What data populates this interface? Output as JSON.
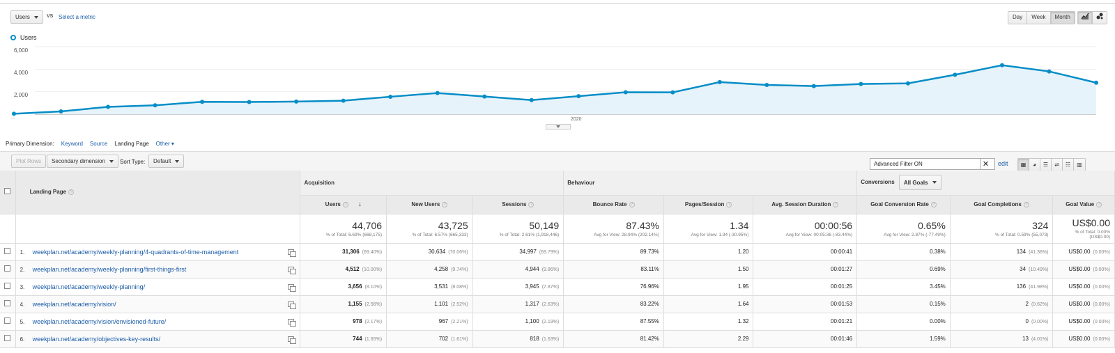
{
  "top": {
    "metric_select": "Users",
    "vs_label": "VS",
    "select_metric_link": "Select a metric",
    "granularity": [
      "Day",
      "Week",
      "Month"
    ],
    "granularity_selected": "Month"
  },
  "chart_data": {
    "type": "area",
    "series": [
      {
        "name": "Users",
        "values": [
          40,
          250,
          650,
          790,
          1100,
          1080,
          1120,
          1200,
          1550,
          1880,
          1570,
          1250,
          1600,
          1950,
          1940,
          2850,
          2600,
          2500,
          2680,
          2740,
          3500,
          4350,
          3800,
          2800
        ]
      }
    ],
    "yticks": [
      "6,000",
      "4,000",
      "2,000"
    ],
    "ylim": [
      0,
      6000
    ],
    "xlabel_mid": "2020",
    "xlabel_left": "...",
    "color": "#058dc7"
  },
  "dimension": {
    "label": "Primary Dimension:",
    "options": [
      "Keyword",
      "Source",
      "Landing Page",
      "Other"
    ],
    "selected": "Landing Page"
  },
  "toolbar": {
    "plot_rows": "Plot Rows",
    "secondary_dimension": "Secondary dimension",
    "sort_type_label": "Sort Type:",
    "sort_type_value": "Default",
    "filter_value": "Advanced Filter ON",
    "edit_link": "edit"
  },
  "table": {
    "landing_page_header": "Landing Page",
    "acquisition": "Acquisition",
    "behaviour": "Behaviour",
    "conversions": "Conversions",
    "all_goals": "All Goals",
    "columns": [
      "Users",
      "New Users",
      "Sessions",
      "Bounce Rate",
      "Pages/Session",
      "Avg. Session Duration",
      "Goal Conversion Rate",
      "Goal Completions",
      "Goal Value"
    ],
    "totals": [
      {
        "big": "44,706",
        "sub": "% of Total: 6.69% (668,175)"
      },
      {
        "big": "43,725",
        "sub": "% of Total: 6.57% (665,333)"
      },
      {
        "big": "50,149",
        "sub": "% of Total: 2.61% (1,918,446)"
      },
      {
        "big": "87.43%",
        "sub": "Avg for View: 28.94% (202.14%)"
      },
      {
        "big": "1.34",
        "sub": "Avg for View: 1.94 (-30.95%)"
      },
      {
        "big": "00:00:56",
        "sub": "Avg for View: 00:05:36 (-83.44%)"
      },
      {
        "big": "0.65%",
        "sub": "Avg for View: 2.87% (-77.49%)"
      },
      {
        "big": "324",
        "sub": "% of Total: 0.59% (55,073)"
      },
      {
        "big": "US$0.00",
        "sub": "% of Total: 0.00% (US$0.00)"
      }
    ],
    "rows": [
      {
        "num": "1.",
        "url": "weekplan.net/academy/weekly-planning/4-quadrants-of-time-management",
        "users": "31,306",
        "users_pct": "(69.40%)",
        "new_users": "30,634",
        "new_users_pct": "(70.06%)",
        "sessions": "34,997",
        "sessions_pct": "(69.79%)",
        "bounce": "89.73%",
        "pps": "1.20",
        "dur": "00:00:41",
        "gcr": "0.38%",
        "gc": "134",
        "gc_pct": "(41.36%)",
        "gv": "US$0.00",
        "gv_pct": "(0.00%)"
      },
      {
        "num": "2.",
        "url": "weekplan.net/academy/weekly-planning/first-things-first",
        "users": "4,512",
        "users_pct": "(10.00%)",
        "new_users": "4,258",
        "new_users_pct": "(9.74%)",
        "sessions": "4,944",
        "sessions_pct": "(9.86%)",
        "bounce": "83.11%",
        "pps": "1.50",
        "dur": "00:01:27",
        "gcr": "0.69%",
        "gc": "34",
        "gc_pct": "(10.49%)",
        "gv": "US$0.00",
        "gv_pct": "(0.00%)"
      },
      {
        "num": "3.",
        "url": "weekplan.net/academy/weekly-planning/",
        "users": "3,656",
        "users_pct": "(8.10%)",
        "new_users": "3,531",
        "new_users_pct": "(8.08%)",
        "sessions": "3,945",
        "sessions_pct": "(7.87%)",
        "bounce": "76.96%",
        "pps": "1.95",
        "dur": "00:01:25",
        "gcr": "3.45%",
        "gc": "136",
        "gc_pct": "(41.98%)",
        "gv": "US$0.00",
        "gv_pct": "(0.00%)"
      },
      {
        "num": "4.",
        "url": "weekplan.net/academy/vision/",
        "users": "1,155",
        "users_pct": "(2.56%)",
        "new_users": "1,101",
        "new_users_pct": "(2.52%)",
        "sessions": "1,317",
        "sessions_pct": "(2.63%)",
        "bounce": "83.22%",
        "pps": "1.64",
        "dur": "00:01:53",
        "gcr": "0.15%",
        "gc": "2",
        "gc_pct": "(0.62%)",
        "gv": "US$0.00",
        "gv_pct": "(0.00%)"
      },
      {
        "num": "5.",
        "url": "weekplan.net/academy/vision/envisioned-future/",
        "users": "978",
        "users_pct": "(2.17%)",
        "new_users": "967",
        "new_users_pct": "(2.21%)",
        "sessions": "1,100",
        "sessions_pct": "(2.19%)",
        "bounce": "87.55%",
        "pps": "1.32",
        "dur": "00:01:21",
        "gcr": "0.00%",
        "gc": "0",
        "gc_pct": "(0.00%)",
        "gv": "US$0.00",
        "gv_pct": "(0.00%)"
      },
      {
        "num": "6.",
        "url": "weekplan.net/academy/objectives-key-results/",
        "users": "744",
        "users_pct": "(1.65%)",
        "new_users": "702",
        "new_users_pct": "(1.61%)",
        "sessions": "818",
        "sessions_pct": "(1.63%)",
        "bounce": "81.42%",
        "pps": "2.29",
        "dur": "00:01:46",
        "gcr": "1.59%",
        "gc": "13",
        "gc_pct": "(4.01%)",
        "gv": "US$0.00",
        "gv_pct": "(0.00%)"
      }
    ]
  }
}
